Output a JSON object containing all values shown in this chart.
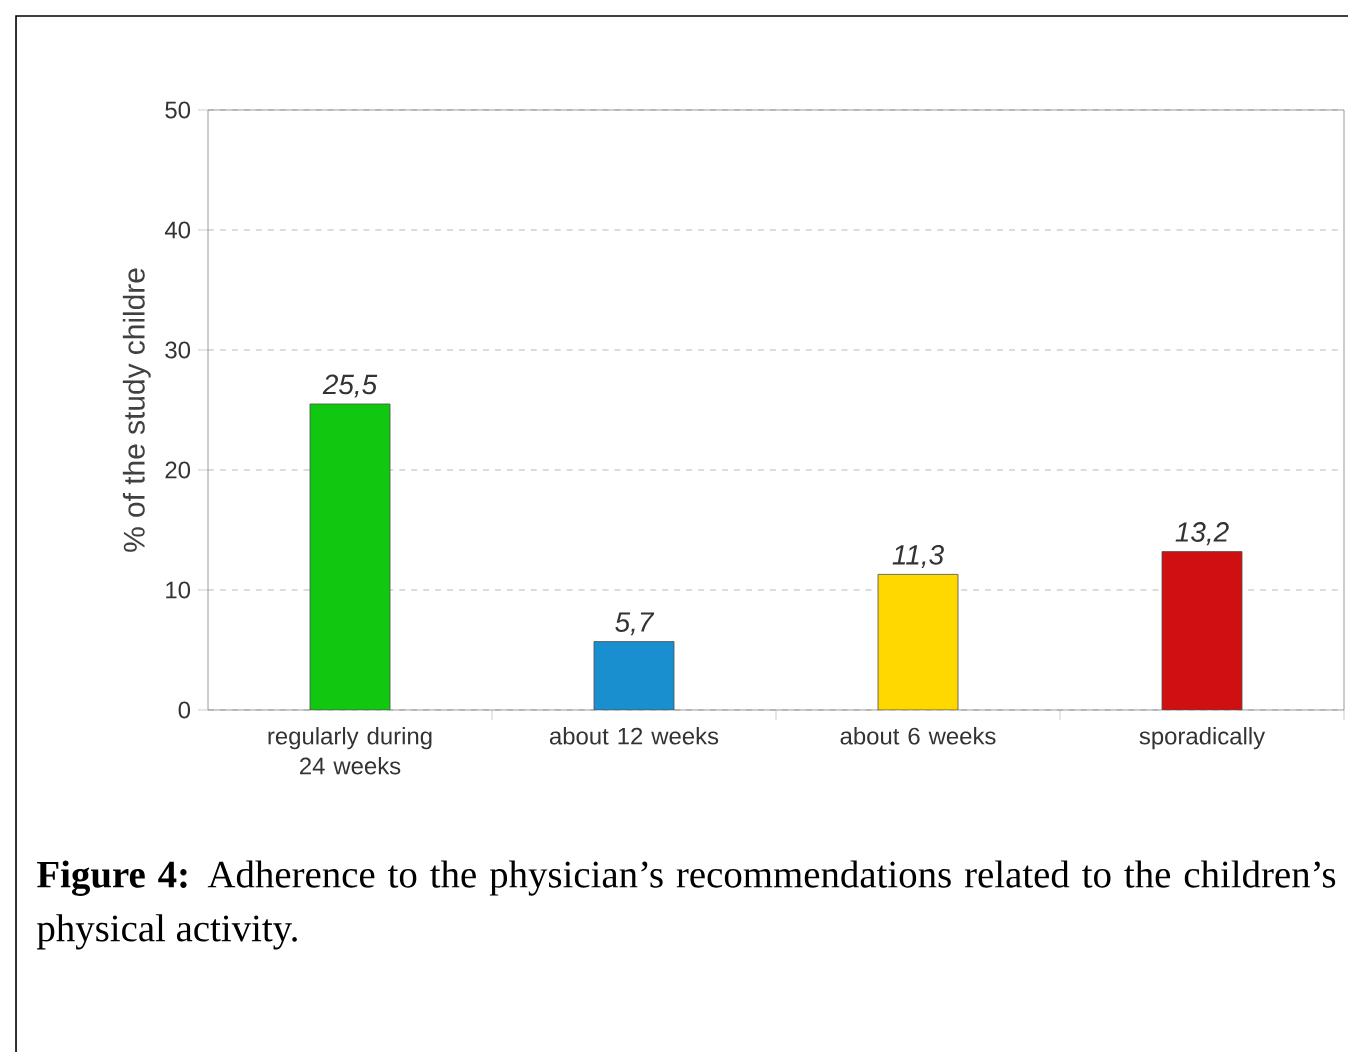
{
  "chart_data": {
    "type": "bar",
    "ylabel": "% of the study childre",
    "categories": [
      "regularly during 24 weeks",
      "about 12 weeks",
      "about 6 weeks",
      "sporadically"
    ],
    "values": [
      25.5,
      5.7,
      11.3,
      13.2
    ],
    "value_labels": [
      "25,5",
      "5,7",
      "11,3",
      "13,2"
    ],
    "colors": [
      "#10c810",
      "#1a8fd0",
      "#ffd800",
      "#d01010"
    ],
    "ylim": [
      0,
      50
    ],
    "yticks": [
      0,
      10,
      20,
      30,
      40,
      50
    ],
    "grid": "y",
    "annotations": [
      "**Figure 4:** Adherence to the physician’s recommendations related to the children’s physical activity."
    ]
  }
}
